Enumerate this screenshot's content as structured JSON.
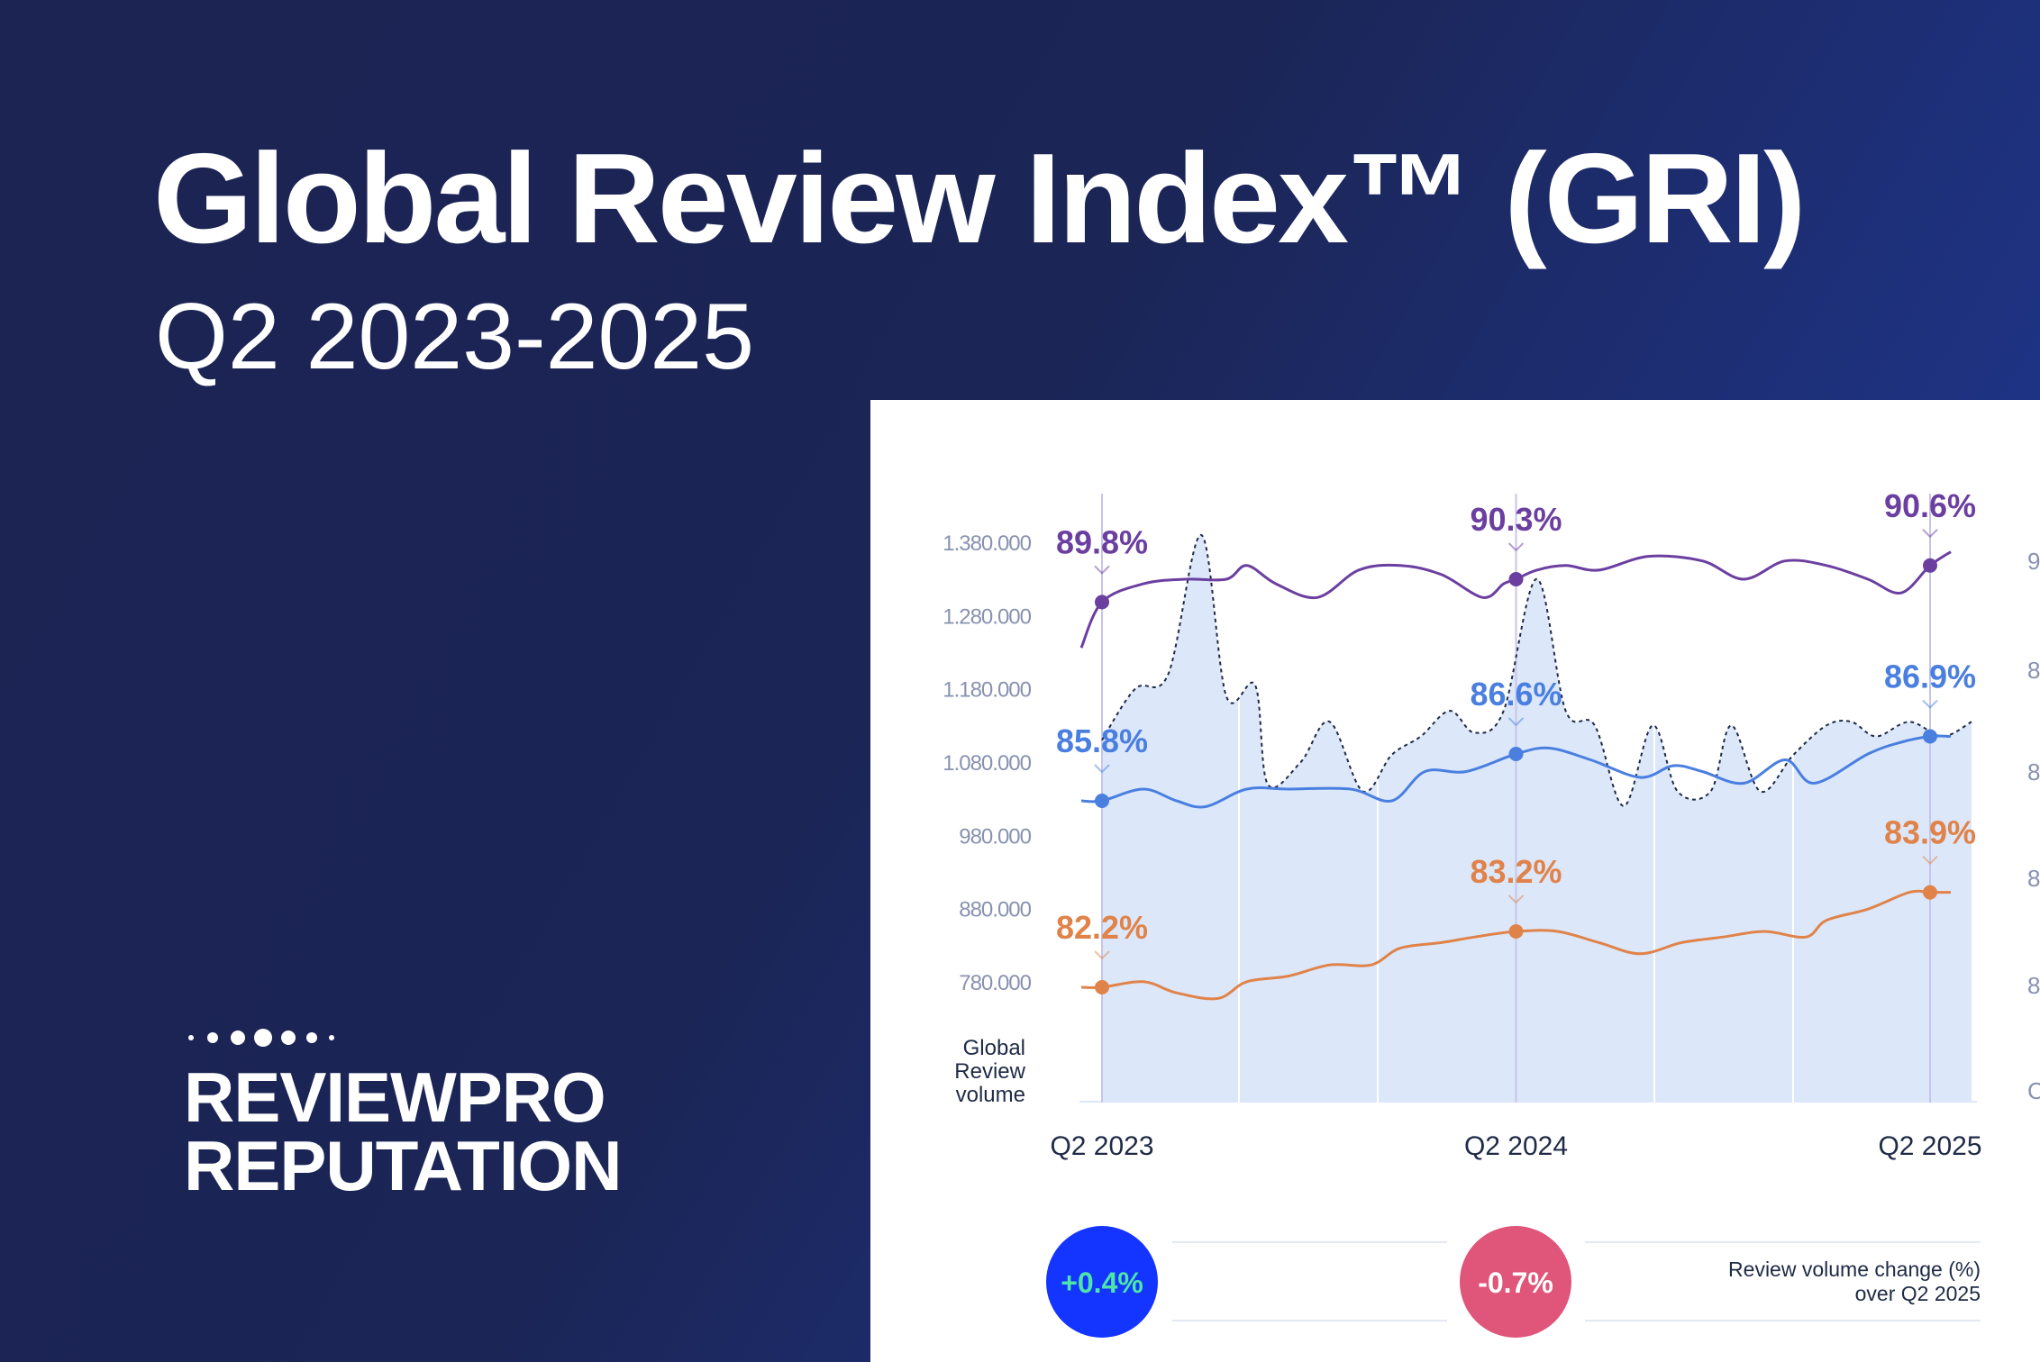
{
  "header": {
    "title": "Global Review Index™ (GRI)",
    "subtitle": "Q2 2023-2025"
  },
  "brand": {
    "line1": "REVIEWPRO",
    "line2": "REPUTATION",
    "logo": "dot-row-logo"
  },
  "colors": {
    "background": "#1b2452",
    "accent_blue": "#1f3a94",
    "panel": "#ffffff",
    "area_fill": "#dce8fa",
    "purple": "#6b3fa0",
    "blue": "#4a7fe0",
    "orange": "#e0834a",
    "badge_positive": "#1435ff",
    "badge_positive_text": "#4de6a6",
    "badge_negative": "#e0557a"
  },
  "chart_data": {
    "type": "line",
    "x": [
      "Q2 2023",
      "Q2 2024",
      "Q2 2025"
    ],
    "x_tick_labels": [
      "Q2 2023",
      "Q2 2024",
      "Q2 2025"
    ],
    "y_left_label": "Global Review volume",
    "y_left_ticks": [
      "1.380.000",
      "1.280.000",
      "1.180.000",
      "1.080.000",
      "980.000",
      "880.000",
      "780.000"
    ],
    "y_left_range": [
      730000,
      1430000
    ],
    "grid": false,
    "area_series": {
      "name": "Global Review volume",
      "style": "dotted-outline-filled-area",
      "x": [
        0,
        0.08,
        0.16,
        0.24,
        0.3,
        0.37,
        0.4,
        0.48,
        0.55,
        0.63,
        0.7,
        0.77,
        0.84,
        0.9,
        0.97,
        1.05,
        1.12,
        1.19,
        1.26,
        1.33,
        1.39,
        1.47,
        1.52,
        1.59,
        1.67,
        1.75,
        1.81,
        1.87,
        1.95,
        2.03,
        2.1
      ],
      "values": [
        1110000,
        1180000,
        1200000,
        1390000,
        1170000,
        1185000,
        1050000,
        1080000,
        1135000,
        1040000,
        1090000,
        1115000,
        1150000,
        1120000,
        1150000,
        1330000,
        1150000,
        1130000,
        1020000,
        1130000,
        1040000,
        1040000,
        1130000,
        1040000,
        1090000,
        1130000,
        1135000,
        1115000,
        1135000,
        1115000,
        1135000
      ]
    },
    "series": [
      {
        "color": "#6b3fa0",
        "x": [
          -0.05,
          0,
          0.1,
          0.2,
          0.3,
          0.35,
          0.42,
          0.52,
          0.62,
          0.72,
          0.82,
          0.92,
          0.97,
          1.0,
          1.05,
          1.12,
          1.2,
          1.32,
          1.45,
          1.55,
          1.65,
          1.75,
          1.85,
          1.93,
          2.0,
          2.05
        ],
        "values": [
          88.8,
          89.8,
          90.2,
          90.3,
          90.3,
          90.6,
          90.2,
          89.9,
          90.5,
          90.6,
          90.4,
          89.9,
          90.2,
          90.3,
          90.5,
          90.6,
          90.5,
          90.8,
          90.7,
          90.3,
          90.7,
          90.6,
          90.3,
          90.0,
          90.6,
          90.9
        ],
        "highlights": [
          {
            "x": 0,
            "value": 89.8,
            "label": "89.8%"
          },
          {
            "x": 1,
            "value": 90.3,
            "label": "90.3%"
          },
          {
            "x": 2,
            "value": 90.6,
            "label": "90.6%"
          }
        ]
      },
      {
        "color": "#4a7fe0",
        "x": [
          -0.05,
          0,
          0.1,
          0.18,
          0.25,
          0.35,
          0.45,
          0.6,
          0.7,
          0.78,
          0.88,
          1.0,
          1.08,
          1.18,
          1.3,
          1.38,
          1.45,
          1.55,
          1.65,
          1.72,
          1.85,
          1.93,
          2.0,
          2.05
        ],
        "values": [
          85.8,
          85.8,
          86.0,
          85.8,
          85.7,
          86.0,
          86.0,
          86.0,
          85.8,
          86.3,
          86.3,
          86.6,
          86.7,
          86.5,
          86.2,
          86.4,
          86.3,
          86.1,
          86.5,
          86.1,
          86.6,
          86.8,
          86.9,
          86.9
        ],
        "highlights": [
          {
            "x": 0,
            "value": 85.8,
            "label": "85.8%"
          },
          {
            "x": 1,
            "value": 86.6,
            "label": "86.6%"
          },
          {
            "x": 2,
            "value": 86.9,
            "label": "86.9%"
          }
        ]
      },
      {
        "color": "#e0834a",
        "x": [
          -0.05,
          0,
          0.1,
          0.18,
          0.28,
          0.35,
          0.45,
          0.55,
          0.65,
          0.72,
          0.82,
          0.9,
          1.0,
          1.1,
          1.2,
          1.3,
          1.4,
          1.5,
          1.6,
          1.7,
          1.75,
          1.85,
          1.95,
          2.0,
          2.05
        ],
        "values": [
          82.2,
          82.2,
          82.3,
          82.1,
          82.0,
          82.3,
          82.4,
          82.6,
          82.6,
          82.9,
          83.0,
          83.1,
          83.2,
          83.2,
          83.0,
          82.8,
          83.0,
          83.1,
          83.2,
          83.1,
          83.4,
          83.6,
          83.9,
          83.9,
          83.9
        ],
        "highlights": [
          {
            "x": 0,
            "value": 82.2,
            "label": "82.2%"
          },
          {
            "x": 1,
            "value": 83.2,
            "label": "83.2%"
          },
          {
            "x": 2,
            "value": 83.9,
            "label": "83.9%"
          }
        ]
      }
    ]
  },
  "footer": {
    "badge_positive": "+0.4%",
    "badge_negative": "-0.7%",
    "note_line1": "Review volume change (%)",
    "note_line2": "over Q2 2025"
  }
}
